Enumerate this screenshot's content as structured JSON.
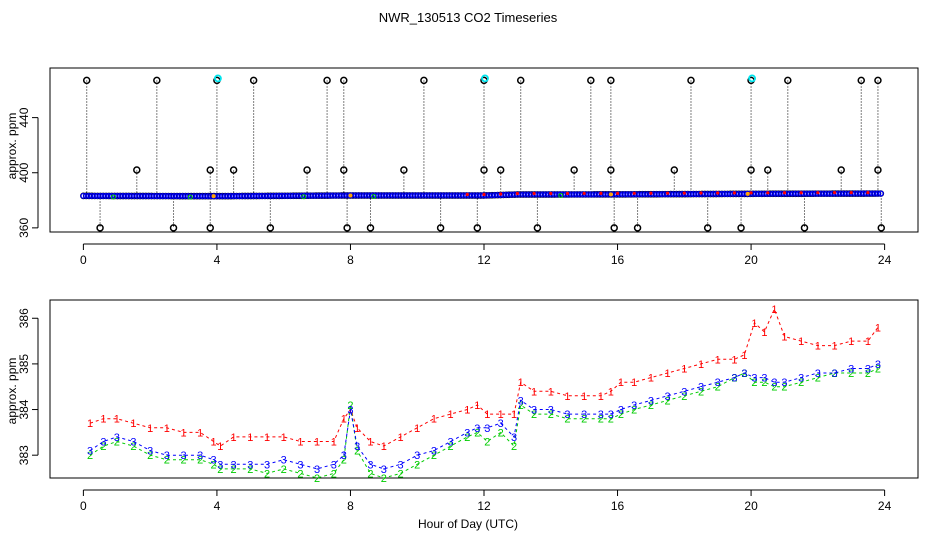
{
  "title": "NWR_130513  CO2 Timeseries",
  "xlabel": "Hour of Day (UTC)",
  "colors": {
    "black": "#000000",
    "blue": "#0000ff",
    "red": "#ff0000",
    "green": "#00cc00",
    "cyan": "#00e5ee",
    "orange": "#ffa500"
  },
  "chart_data": [
    {
      "type": "scatter",
      "name": "top-panel",
      "ylabel": "approx. ppm",
      "xlim": [
        -1,
        25
      ],
      "ylim": [
        357,
        476
      ],
      "x_ticks": [
        0,
        4,
        8,
        12,
        16,
        20,
        24
      ],
      "y_ticks": [
        360,
        400,
        440
      ],
      "baseline": [
        [
          0,
          383.2
        ],
        [
          4,
          383.0
        ],
        [
          8,
          383.5
        ],
        [
          12,
          383.5
        ],
        [
          13,
          384.2
        ],
        [
          16,
          384.3
        ],
        [
          20,
          384.7
        ],
        [
          24,
          384.9
        ]
      ],
      "spikes_high": [
        0.1,
        2.2,
        4.0,
        5.1,
        7.3,
        7.8,
        10.2,
        12.0,
        13.1,
        15.2,
        15.8,
        18.2,
        20.0,
        21.1,
        23.3,
        23.8
      ],
      "spikes_low": [
        0.5,
        2.7,
        3.8,
        5.6,
        7.9,
        8.6,
        10.7,
        11.8,
        13.6,
        15.9,
        16.6,
        18.7,
        19.7,
        21.6,
        23.9
      ],
      "spikes_mid": [
        1.6,
        3.8,
        4.5,
        6.7,
        7.8,
        9.6,
        12.0,
        12.5,
        14.7,
        15.8,
        17.7,
        20.0,
        20.5,
        22.7,
        23.8
      ],
      "spike_high_value": 467,
      "spike_mid_value": 402,
      "spike_low_value": 360,
      "cyan_highlight": [
        4.0,
        12.0,
        20.0
      ]
    },
    {
      "type": "line",
      "name": "bottom-panel",
      "ylabel": "approx. ppm",
      "xlim": [
        -1,
        25
      ],
      "ylim": [
        382.5,
        386.4
      ],
      "x_ticks": [
        0,
        4,
        8,
        12,
        16,
        20,
        24
      ],
      "y_ticks": [
        383,
        384,
        385,
        386
      ],
      "series": [
        {
          "name": "1",
          "color": "red",
          "x": [
            0.2,
            0.6,
            1.0,
            1.5,
            2.0,
            2.5,
            3.0,
            3.5,
            3.9,
            4.1,
            4.5,
            5.0,
            5.5,
            6.0,
            6.5,
            7.0,
            7.5,
            7.8,
            8.0,
            8.2,
            8.6,
            9.0,
            9.5,
            10.0,
            10.5,
            11.0,
            11.5,
            11.8,
            12.1,
            12.5,
            12.9,
            13.1,
            13.5,
            14.0,
            14.5,
            15.0,
            15.5,
            15.8,
            16.1,
            16.5,
            17.0,
            17.5,
            18.0,
            18.5,
            19.0,
            19.5,
            19.8,
            20.1,
            20.4,
            20.7,
            21.0,
            21.5,
            22.0,
            22.5,
            23.0,
            23.5,
            23.8
          ],
          "y": [
            383.7,
            383.8,
            383.8,
            383.7,
            383.6,
            383.6,
            383.5,
            383.5,
            383.3,
            383.2,
            383.4,
            383.4,
            383.4,
            383.4,
            383.3,
            383.3,
            383.3,
            383.8,
            384.0,
            383.6,
            383.3,
            383.2,
            383.4,
            383.6,
            383.8,
            383.9,
            384.0,
            384.1,
            383.9,
            383.9,
            383.9,
            384.6,
            384.4,
            384.4,
            384.3,
            384.3,
            384.3,
            384.4,
            384.6,
            384.6,
            384.7,
            384.8,
            384.9,
            385.0,
            385.1,
            385.1,
            385.2,
            385.9,
            385.7,
            386.2,
            385.6,
            385.5,
            385.4,
            385.4,
            385.5,
            385.5,
            385.8
          ]
        },
        {
          "name": "2",
          "color": "green",
          "x": [
            0.2,
            0.6,
            1.0,
            1.5,
            2.0,
            2.5,
            3.0,
            3.5,
            3.9,
            4.1,
            4.5,
            5.0,
            5.5,
            6.0,
            6.5,
            7.0,
            7.5,
            7.8,
            8.0,
            8.2,
            8.6,
            9.0,
            9.5,
            10.0,
            10.5,
            11.0,
            11.5,
            11.8,
            12.1,
            12.5,
            12.9,
            13.1,
            13.5,
            14.0,
            14.5,
            15.0,
            15.5,
            15.8,
            16.1,
            16.5,
            17.0,
            17.5,
            18.0,
            18.5,
            19.0,
            19.5,
            19.8,
            20.1,
            20.4,
            20.7,
            21.0,
            21.5,
            22.0,
            22.5,
            23.0,
            23.5,
            23.8
          ],
          "y": [
            383.0,
            383.2,
            383.3,
            383.2,
            383.0,
            382.9,
            382.9,
            382.9,
            382.8,
            382.7,
            382.7,
            382.7,
            382.6,
            382.7,
            382.6,
            382.5,
            382.6,
            382.9,
            384.1,
            383.1,
            382.6,
            382.5,
            382.6,
            382.8,
            383.0,
            383.2,
            383.4,
            383.5,
            383.3,
            383.5,
            383.2,
            384.1,
            383.9,
            383.9,
            383.8,
            383.8,
            383.8,
            383.8,
            383.9,
            384.0,
            384.1,
            384.2,
            384.3,
            384.4,
            384.5,
            384.7,
            384.8,
            384.6,
            384.6,
            384.5,
            384.5,
            384.6,
            384.7,
            384.8,
            384.8,
            384.8,
            384.9
          ]
        },
        {
          "name": "3",
          "color": "blue",
          "x": [
            0.2,
            0.6,
            1.0,
            1.5,
            2.0,
            2.5,
            3.0,
            3.5,
            3.9,
            4.1,
            4.5,
            5.0,
            5.5,
            6.0,
            6.5,
            7.0,
            7.5,
            7.8,
            8.0,
            8.2,
            8.6,
            9.0,
            9.5,
            10.0,
            10.5,
            11.0,
            11.5,
            11.8,
            12.1,
            12.5,
            12.9,
            13.1,
            13.5,
            14.0,
            14.5,
            15.0,
            15.5,
            15.8,
            16.1,
            16.5,
            17.0,
            17.5,
            18.0,
            18.5,
            19.0,
            19.5,
            19.8,
            20.1,
            20.4,
            20.7,
            21.0,
            21.5,
            22.0,
            22.5,
            23.0,
            23.5,
            23.8
          ],
          "y": [
            383.1,
            383.3,
            383.4,
            383.3,
            383.1,
            383.0,
            383.0,
            383.0,
            382.9,
            382.8,
            382.8,
            382.8,
            382.8,
            382.9,
            382.8,
            382.7,
            382.8,
            383.0,
            384.0,
            383.2,
            382.8,
            382.7,
            382.8,
            383.0,
            383.1,
            383.3,
            383.5,
            383.6,
            383.6,
            383.7,
            383.4,
            384.2,
            384.0,
            384.0,
            383.9,
            383.9,
            383.9,
            383.9,
            384.0,
            384.1,
            384.2,
            384.3,
            384.4,
            384.5,
            384.6,
            384.7,
            384.8,
            384.7,
            384.7,
            384.6,
            384.6,
            384.7,
            384.8,
            384.8,
            384.9,
            384.9,
            385.0
          ]
        }
      ]
    }
  ]
}
